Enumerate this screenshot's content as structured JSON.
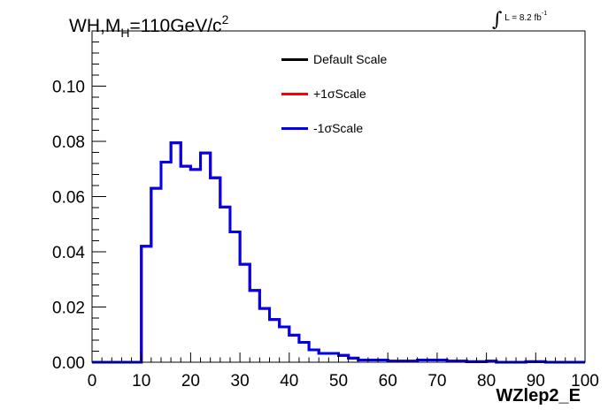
{
  "title": {
    "prefix": "WH,M",
    "sub": "H",
    "value": "=110GeV/c",
    "sup": "2"
  },
  "lumi": {
    "symbol": "∫",
    "text": "L = 8.2 fb",
    "sup": "-1"
  },
  "chart_data": {
    "type": "line",
    "xlabel": "WZlep2_E",
    "ylabel": "",
    "xlim": [
      0,
      100
    ],
    "ylim": [
      0,
      0.12
    ],
    "x_ticks": [
      0,
      10,
      20,
      30,
      40,
      50,
      60,
      70,
      80,
      90,
      100
    ],
    "y_ticks": [
      0.0,
      0.02,
      0.04,
      0.06,
      0.08,
      0.1
    ],
    "x_tick_labels": [
      "0",
      "10",
      "20",
      "30",
      "40",
      "50",
      "60",
      "70",
      "80",
      "90",
      "100"
    ],
    "y_tick_labels": [
      "0.00",
      "0.02",
      "0.04",
      "0.06",
      "0.08",
      "0.10"
    ],
    "bin_edges": [
      0,
      2,
      4,
      6,
      8,
      10,
      12,
      14,
      16,
      18,
      20,
      22,
      24,
      26,
      28,
      30,
      32,
      34,
      36,
      38,
      40,
      42,
      44,
      46,
      48,
      50,
      52,
      54,
      56,
      58,
      60,
      62,
      64,
      66,
      68,
      70,
      72,
      74,
      76,
      78,
      80,
      82,
      84,
      86,
      88,
      90,
      92,
      94,
      96,
      98,
      100
    ],
    "legend_position": "top-center",
    "series": [
      {
        "name": "Default Scale",
        "color": "#000000",
        "values": [
          0,
          0,
          0,
          0,
          0,
          0.042,
          0.063,
          0.0725,
          0.0795,
          0.071,
          0.0698,
          0.0758,
          0.0668,
          0.0562,
          0.0472,
          0.0355,
          0.026,
          0.0195,
          0.0155,
          0.0128,
          0.0098,
          0.0072,
          0.0045,
          0.0032,
          0.0032,
          0.0025,
          0.0015,
          0.0008,
          0.0008,
          0.0008,
          0.0004,
          0.0004,
          0.0004,
          0.0008,
          0.0008,
          0.0008,
          0.0004,
          0.0004,
          0.0002,
          0.0002,
          0.0004,
          0,
          0,
          0,
          0.0002,
          0.0002,
          0,
          0,
          0,
          0
        ]
      },
      {
        "name": "+1σScale",
        "color": "#ff0000",
        "values": [
          0,
          0,
          0,
          0,
          0,
          0.042,
          0.063,
          0.0725,
          0.0795,
          0.071,
          0.0698,
          0.0758,
          0.0668,
          0.0562,
          0.0472,
          0.0355,
          0.026,
          0.0195,
          0.0155,
          0.0128,
          0.0098,
          0.0072,
          0.0045,
          0.0032,
          0.0032,
          0.0025,
          0.0015,
          0.0008,
          0.0008,
          0.0008,
          0.0004,
          0.0004,
          0.0004,
          0.0008,
          0.0008,
          0.0008,
          0.0004,
          0.0004,
          0.0002,
          0.0002,
          0.0004,
          0,
          0,
          0,
          0.0002,
          0.0002,
          0,
          0,
          0,
          0
        ]
      },
      {
        "name": "-1σScale",
        "color": "#0000ee",
        "values": [
          0,
          0,
          0,
          0,
          0,
          0.042,
          0.063,
          0.0725,
          0.0795,
          0.071,
          0.0698,
          0.0758,
          0.0668,
          0.0562,
          0.0472,
          0.0355,
          0.026,
          0.0195,
          0.0155,
          0.0128,
          0.0098,
          0.0072,
          0.0045,
          0.0032,
          0.0032,
          0.0025,
          0.0015,
          0.0008,
          0.0008,
          0.0008,
          0.0004,
          0.0004,
          0.0004,
          0.0008,
          0.0008,
          0.0008,
          0.0004,
          0.0004,
          0.0002,
          0.0002,
          0.0004,
          0,
          0,
          0,
          0.0002,
          0.0002,
          0,
          0,
          0,
          0
        ]
      }
    ]
  }
}
